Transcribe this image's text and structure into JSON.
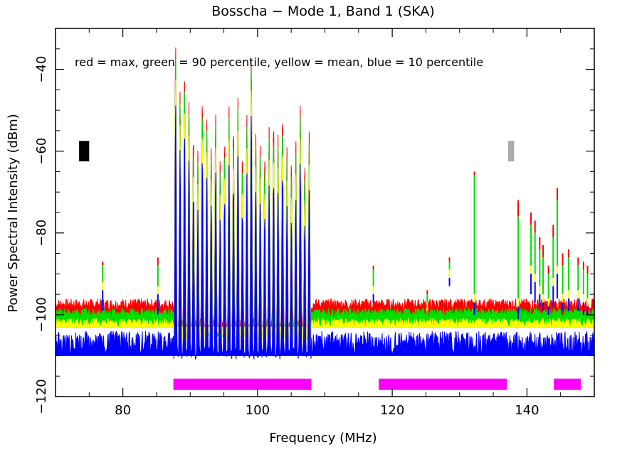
{
  "chart_data": {
    "type": "line",
    "title": "Bosscha − Mode 1, Band 1 (SKA)",
    "xlabel": "Frequency (MHz)",
    "ylabel": "Power Spectral Intensity (dBm)",
    "annotation": "red = max, green =  90 percentile, yellow = mean, blue = 10 percentile",
    "xlim": [
      70,
      150
    ],
    "ylim": [
      -120,
      -30
    ],
    "x_ticks": [
      80,
      100,
      120,
      140
    ],
    "x_tick_labels": [
      "80",
      "100",
      "120",
      "140"
    ],
    "y_ticks": [
      -40,
      -60,
      -80,
      -100,
      -120
    ],
    "y_tick_labels": [
      "−40",
      "−60",
      "−80",
      "−100",
      "−120"
    ],
    "grid": false,
    "series": [
      {
        "name": "max",
        "color": "#ff0000",
        "baseline": -97.5
      },
      {
        "name": "90 percentile",
        "color": "#00e000",
        "baseline": -99.5
      },
      {
        "name": "mean",
        "color": "#ffff00",
        "baseline": -102
      },
      {
        "name": "10 percentile",
        "color": "#0000ff",
        "baseline": -104,
        "floor": -110
      }
    ],
    "fm_band": {
      "x_range": [
        87.5,
        108
      ],
      "peaks_max": [
        -33,
        -45,
        -40,
        -48,
        -55,
        -60,
        -46,
        -52,
        -58,
        -50,
        -62,
        -57,
        -49,
        -53,
        -47,
        -60,
        -51,
        -35,
        -55,
        -58,
        -61,
        -54,
        -52,
        -56,
        -50,
        -59,
        -62,
        -57,
        -48,
        -63,
        -55
      ]
    },
    "spikes": [
      {
        "x": 77.0,
        "max": -87,
        "p90": -88,
        "mean": -92,
        "p10": -99
      },
      {
        "x": 85.2,
        "max": -86,
        "p90": -88,
        "mean": -93,
        "p10": -100
      },
      {
        "x": 117.2,
        "max": -88,
        "p90": -89,
        "mean": -93,
        "p10": -97
      },
      {
        "x": 125.2,
        "max": -94,
        "p90": -95,
        "mean": -97,
        "p10": -99
      },
      {
        "x": 128.5,
        "max": -86,
        "p90": -87,
        "mean": -89,
        "p10": -93
      },
      {
        "x": 132.2,
        "max": -65,
        "p90": -66,
        "mean": -95,
        "p10": -100
      },
      {
        "x": 138.7,
        "max": -72,
        "p90": -76,
        "mean": -96,
        "p10": -101
      },
      {
        "x": 140.6,
        "max": -75,
        "p90": -78,
        "mean": -88,
        "p10": -95
      },
      {
        "x": 141.2,
        "max": -77,
        "p90": -80,
        "mean": -90,
        "p10": -97
      },
      {
        "x": 141.9,
        "max": -81,
        "p90": -84,
        "mean": -93,
        "p10": -98
      },
      {
        "x": 142.4,
        "max": -83,
        "p90": -86,
        "mean": -95,
        "p10": -99
      },
      {
        "x": 143.2,
        "max": -88,
        "p90": -90,
        "mean": -96,
        "p10": -100
      },
      {
        "x": 143.9,
        "max": -78,
        "p90": -81,
        "mean": -91,
        "p10": -98
      },
      {
        "x": 144.5,
        "max": -69,
        "p90": -72,
        "mean": -88,
        "p10": -96
      },
      {
        "x": 145.3,
        "max": -85,
        "p90": -88,
        "mean": -95,
        "p10": -99
      },
      {
        "x": 146.2,
        "max": -84,
        "p90": -86,
        "mean": -94,
        "p10": -99
      },
      {
        "x": 147.6,
        "max": -86,
        "p90": -88,
        "mean": -94,
        "p10": -99
      },
      {
        "x": 148.4,
        "max": -87,
        "p90": -89,
        "mean": -95,
        "p10": -100
      },
      {
        "x": 149.0,
        "max": -88,
        "p90": -90,
        "mean": -96,
        "p10": -100
      }
    ],
    "band_bars": [
      {
        "x_range": [
          87.5,
          108
        ],
        "y": -117,
        "color": "#ff00ff"
      },
      {
        "x_range": [
          118,
          137
        ],
        "y": -117,
        "color": "#ff00ff"
      },
      {
        "x_range": [
          144,
          148
        ],
        "y": -117,
        "color": "#ff00ff"
      }
    ],
    "markers": [
      {
        "x_range": [
          73.5,
          75.0
        ],
        "y_range": [
          -62.5,
          -57.5
        ],
        "color": "#000000"
      },
      {
        "x_range": [
          137.2,
          138.1
        ],
        "y_range": [
          -62.5,
          -57.5
        ],
        "color": "#aaaaaa"
      }
    ]
  }
}
